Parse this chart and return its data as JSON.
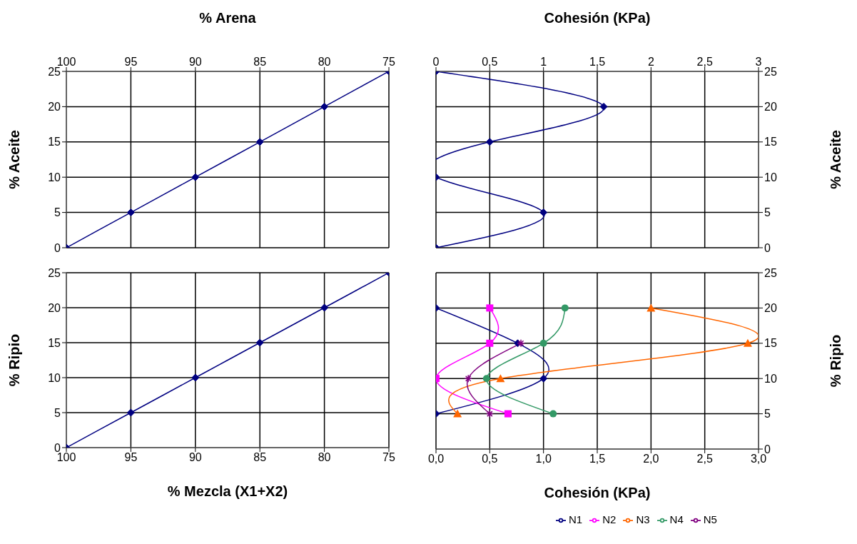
{
  "chart_data": [
    {
      "type": "line",
      "xlabel": "% Arena",
      "ylabel": "% Aceite",
      "xlim": [
        100,
        75
      ],
      "xticks": [
        100,
        95,
        90,
        85,
        80,
        75
      ],
      "ylim": [
        0,
        25
      ],
      "yticks": [
        0,
        5,
        10,
        15,
        20,
        25
      ],
      "grid": true,
      "series": [
        {
          "color": "#000080",
          "marker": "diamond",
          "x": [
            100,
            95,
            90,
            85,
            80,
            75
          ],
          "values": [
            0,
            5,
            10,
            15,
            20,
            25
          ]
        }
      ]
    },
    {
      "type": "line",
      "xlabel": "Cohesión (KPa)",
      "y2label": "% Aceite",
      "xlim": [
        0,
        3
      ],
      "xticks": [
        0,
        {
          "value": 0.5,
          "label": "0,5"
        },
        1,
        {
          "value": 1.5,
          "label": "1,5"
        },
        2,
        {
          "value": 2.5,
          "label": "2,5"
        },
        3
      ],
      "y2lim": [
        0,
        25
      ],
      "y2ticks": [
        0,
        5,
        10,
        15,
        20,
        25
      ],
      "grid": true,
      "series": [
        {
          "color": "#000080",
          "marker": "diamond",
          "axis": "y2",
          "x": [
            0,
            1.56,
            0.5,
            0,
            1,
            0
          ],
          "values": [
            25,
            20,
            15,
            10,
            5,
            0
          ]
        }
      ]
    },
    {
      "type": "line",
      "xlabel": "% Mezcla (X1+X2)",
      "ylabel": "% Ripio",
      "xlim": [
        100,
        75
      ],
      "xticks": [
        100,
        95,
        90,
        85,
        80,
        75
      ],
      "ylim": [
        0,
        25
      ],
      "yticks": [
        0,
        5,
        10,
        15,
        20,
        25
      ],
      "grid": true,
      "series": [
        {
          "color": "#000080",
          "marker": "diamond",
          "x": [
            100,
            95,
            90,
            85,
            80,
            75
          ],
          "values": [
            0,
            5,
            10,
            15,
            20,
            25
          ]
        }
      ]
    },
    {
      "type": "line",
      "xlabel": "Cohesión (KPa)",
      "y2label": "% Ripio",
      "xlim": [
        0,
        3
      ],
      "xticks": [
        {
          "value": 0,
          "label": "0,0"
        },
        {
          "value": 0.5,
          "label": "0,5"
        },
        {
          "value": 1,
          "label": "1,0"
        },
        {
          "value": 1.5,
          "label": "1,5"
        },
        {
          "value": 2,
          "label": "2,0"
        },
        {
          "value": 2.5,
          "label": "2,5"
        },
        {
          "value": 3,
          "label": "3,0"
        }
      ],
      "y2lim": [
        0,
        25
      ],
      "y2ticks": [
        0,
        5,
        10,
        15,
        20,
        25
      ],
      "grid": true,
      "legend": "bottom",
      "series": [
        {
          "name": "N1",
          "color": "#000080",
          "marker": "diamond",
          "axis": "y2",
          "x": [
            0,
            0.76,
            1,
            0
          ],
          "values": [
            20,
            15,
            10,
            5
          ]
        },
        {
          "name": "N2",
          "color": "#ff00ff",
          "marker": "square",
          "axis": "y2",
          "x": [
            0.5,
            0.5,
            0,
            0.67
          ],
          "values": [
            20,
            15,
            10,
            5
          ]
        },
        {
          "name": "N3",
          "color": "#ff6600",
          "marker": "triangle",
          "axis": "y2",
          "x": [
            2,
            2.9,
            0.6,
            0.2
          ],
          "values": [
            20,
            15,
            10,
            5
          ]
        },
        {
          "name": "N4",
          "color": "#339966",
          "marker": "circle",
          "axis": "y2",
          "x": [
            1.2,
            1,
            0.47,
            1.09
          ],
          "values": [
            20,
            15,
            10,
            5
          ]
        },
        {
          "name": "N5",
          "color": "#800080",
          "marker": "cross",
          "axis": "y2",
          "x": [
            0.79,
            0.3,
            0.5
          ],
          "values": [
            15,
            10,
            5
          ]
        }
      ]
    }
  ]
}
